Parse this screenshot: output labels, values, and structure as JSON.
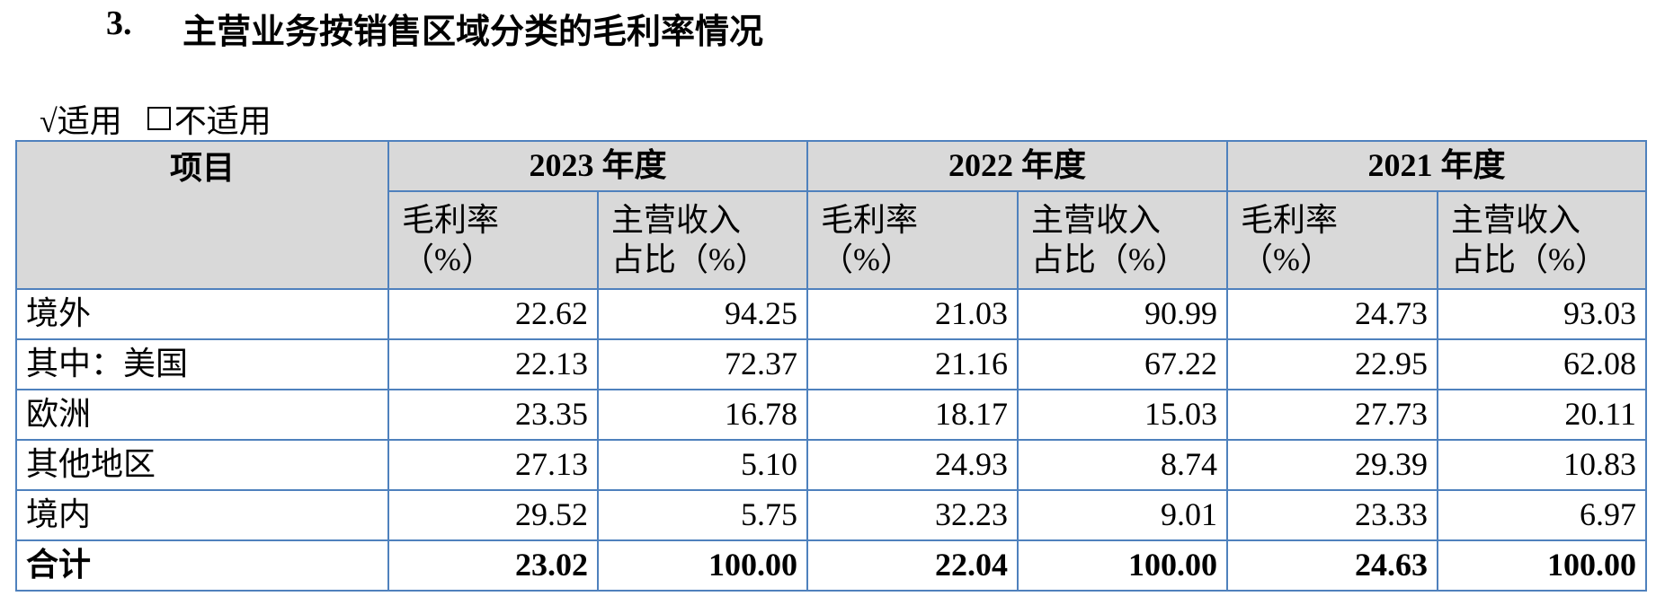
{
  "heading": {
    "number": "3.",
    "text": "主营业务按销售区域分类的毛利率情况"
  },
  "applicability": {
    "applicable": "√适用",
    "not_applicable": "不适用"
  },
  "table": {
    "item_header": "项目",
    "years": [
      "2023 年度",
      "2022 年度",
      "2021 年度"
    ],
    "sub_headers": [
      [
        "毛利率",
        "（%）"
      ],
      [
        "主营收入",
        "占比（%）"
      ]
    ],
    "rows": [
      [
        "境外",
        "22.62",
        "94.25",
        "21.03",
        "90.99",
        "24.73",
        "93.03"
      ],
      [
        "其中：美国",
        "22.13",
        "72.37",
        "21.16",
        "67.22",
        "22.95",
        "62.08"
      ],
      [
        "欧洲",
        "23.35",
        "16.78",
        "18.17",
        "15.03",
        "27.73",
        "20.11"
      ],
      [
        "其他地区",
        "27.13",
        "5.10",
        "24.93",
        "8.74",
        "29.39",
        "10.83"
      ],
      [
        "境内",
        "29.52",
        "5.75",
        "32.23",
        "9.01",
        "23.33",
        "6.97"
      ]
    ],
    "total": [
      "合计",
      "23.02",
      "100.00",
      "22.04",
      "100.00",
      "24.63",
      "100.00"
    ]
  }
}
